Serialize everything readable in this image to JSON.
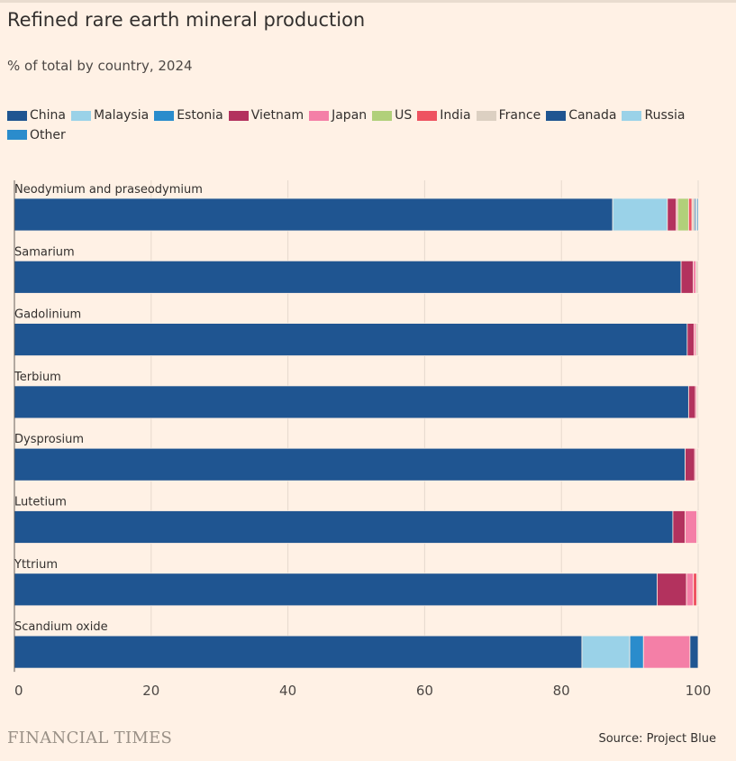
{
  "header": {
    "title": "Refined rare earth mineral production",
    "subtitle": "% of total by country, 2024"
  },
  "footer": {
    "brand": "FINANCIAL TIMES",
    "source": "Source: Project Blue"
  },
  "colors": {
    "China": "#1f5591",
    "Malaysia": "#9ad2e8",
    "Estonia": "#2a8ccc",
    "Vietnam": "#b3325e",
    "Japan": "#f47fa7",
    "US": "#b1d07a",
    "India": "#ee5361",
    "France": "#dcd0c2",
    "Canada": "#1f5591",
    "Russia": "#9ad2e8",
    "Other": "#2a8ccc"
  },
  "chart_data": {
    "type": "bar",
    "orientation": "horizontal",
    "stacked": true,
    "title": "Refined rare earth mineral production",
    "subtitle": "% of total by country, 2024",
    "categories": [
      "Neodymium and praseodymium",
      "Samarium",
      "Gadolinium",
      "Terbium",
      "Dysprosium",
      "Lutetium",
      "Yttrium",
      "Scandium oxide"
    ],
    "series": [
      {
        "name": "China",
        "values": [
          87.5,
          97.5,
          98.4,
          98.6,
          98.1,
          96.3,
          94.0,
          83.0
        ]
      },
      {
        "name": "Malaysia",
        "values": [
          8.0,
          0,
          0,
          0,
          0,
          0,
          0,
          7.0
        ]
      },
      {
        "name": "Estonia",
        "values": [
          0,
          0,
          0,
          0,
          0,
          0,
          0,
          2.0
        ]
      },
      {
        "name": "Vietnam",
        "values": [
          1.3,
          1.8,
          1.0,
          1.0,
          1.4,
          1.8,
          4.3,
          0
        ]
      },
      {
        "name": "Japan",
        "values": [
          0.2,
          0.4,
          0.3,
          0.2,
          0.2,
          1.7,
          1.0,
          6.8
        ]
      },
      {
        "name": "US",
        "values": [
          1.6,
          0,
          0,
          0,
          0,
          0,
          0,
          0
        ]
      },
      {
        "name": "India",
        "values": [
          0.5,
          0,
          0,
          0,
          0.1,
          0,
          0.5,
          0
        ]
      },
      {
        "name": "France",
        "values": [
          0.3,
          0.3,
          0.3,
          0.2,
          0.2,
          0.2,
          0.2,
          0
        ]
      },
      {
        "name": "Canada",
        "values": [
          0.2,
          0,
          0,
          0,
          0,
          0,
          0,
          1.2
        ]
      },
      {
        "name": "Russia",
        "values": [
          0.2,
          0,
          0,
          0,
          0,
          0,
          0,
          0
        ]
      },
      {
        "name": "Other",
        "values": [
          0.2,
          0,
          0,
          0,
          0,
          0,
          0,
          0
        ]
      }
    ],
    "xlim": [
      0,
      100
    ],
    "xticks": [
      0,
      20,
      40,
      60,
      80,
      100
    ],
    "xtick_labels": [
      "0",
      "20",
      "40",
      "60",
      "80",
      "100"
    ],
    "xlabel": "",
    "ylabel": "",
    "legend_position": "top-left",
    "grid": true
  }
}
